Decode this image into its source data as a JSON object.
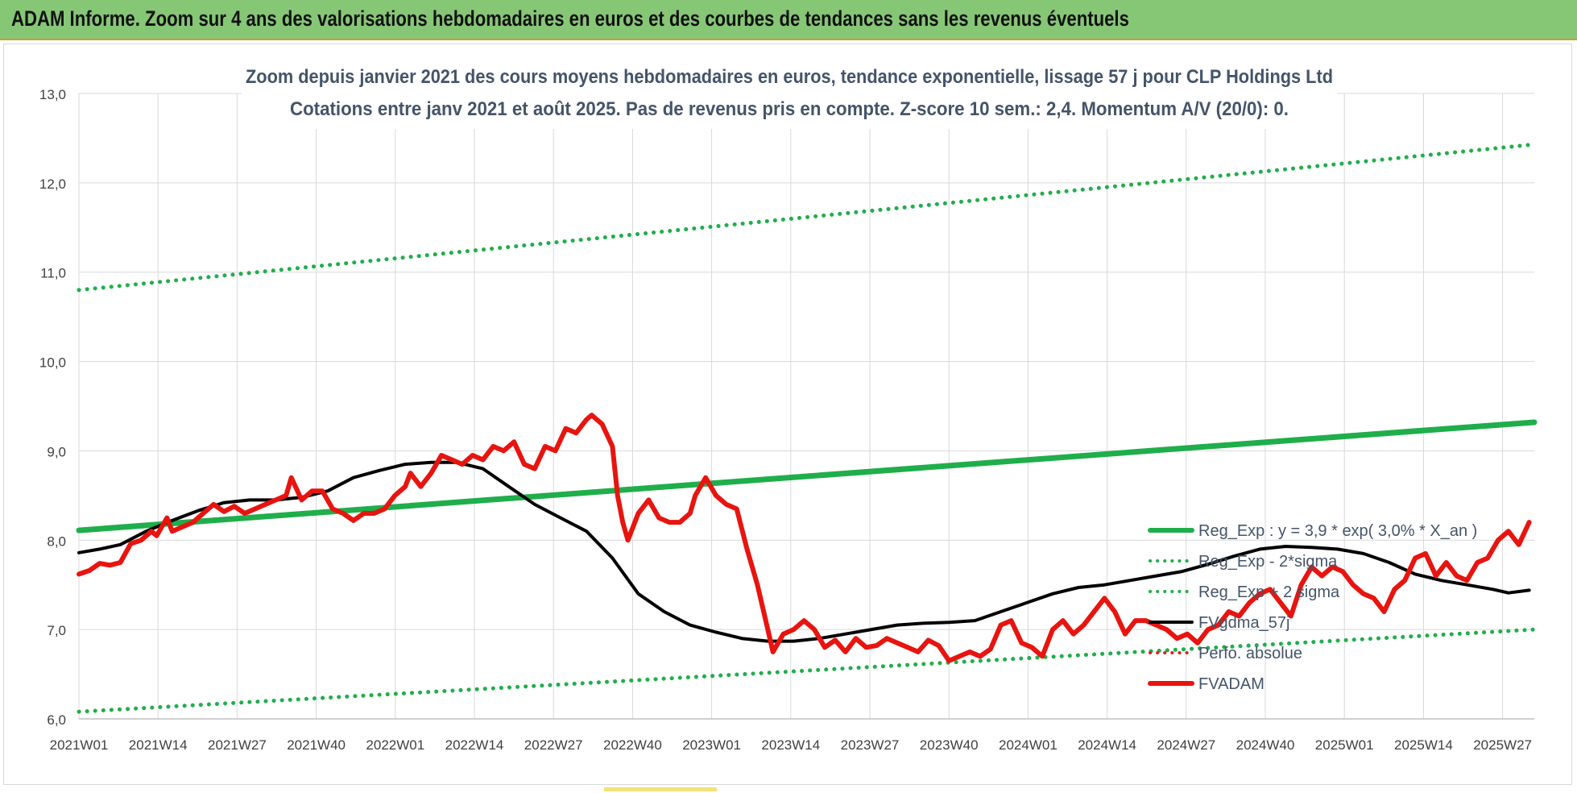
{
  "banner": {
    "title": "ADAM Informe. Zoom sur 4 ans des valorisations hebdomadaires en euros et des courbes de tendances sans les revenus éventuels"
  },
  "chart_data": {
    "type": "line",
    "title_line1": "Zoom depuis janvier 2021 des cours moyens hebdomadaires en euros, tendance exponentielle, lissage 57 j pour CLP Holdings Ltd",
    "title_line2": "Cotations entre janv 2021 et août 2025. Pas de revenus pris en compte. Z-score 10 sem.: 2,4. Momentum A/V (20/0): 0.",
    "ylim": [
      6.0,
      13.0
    ],
    "y_ticks": [
      "6,0",
      "7,0",
      "8,0",
      "9,0",
      "10,0",
      "11,0",
      "12,0",
      "13,0"
    ],
    "x_ticks": [
      "2021W01",
      "2021W14",
      "2021W27",
      "2021W40",
      "2022W01",
      "2022W14",
      "2022W27",
      "2022W40",
      "2023W01",
      "2023W14",
      "2023W27",
      "2023W40",
      "2024W01",
      "2024W14",
      "2024W27",
      "2024W40",
      "2025W01",
      "2025W14",
      "2025W27"
    ],
    "weeks_count": 241,
    "grid": true,
    "legend_position": "right",
    "legend": [
      {
        "name": "Reg_Exp : y = 3,9 * exp( 3,0% *  X_an )",
        "color": "#1fae4b",
        "style": "solid-thick"
      },
      {
        "name": "Reg_Exp - 2*sigma",
        "color": "#1fae4b",
        "style": "dotted"
      },
      {
        "name": "Reg_Exp + 2 sigma",
        "color": "#1fae4b",
        "style": "dotted"
      },
      {
        "name": "FVgdma_57j",
        "color": "#000000",
        "style": "solid"
      },
      {
        "name": "Perfo. absolue",
        "color": "#e02020",
        "style": "dotted"
      },
      {
        "name": "FVADAM",
        "color": "#e8140f",
        "style": "solid-thick"
      }
    ],
    "series": [
      {
        "name": "Reg_Exp : y = 3,9 * exp( 3,0% *  X_an )",
        "start": 8.11,
        "end": 9.32
      },
      {
        "name": "Reg_Exp - 2*sigma",
        "start": 6.08,
        "end": 7.0
      },
      {
        "name": "Reg_Exp + 2 sigma",
        "start": 10.8,
        "end": 12.43
      },
      {
        "name": "FVgdma_57j",
        "points": [
          [
            0,
            7.86
          ],
          [
            4,
            7.9
          ],
          [
            8,
            7.95
          ],
          [
            13,
            8.1
          ],
          [
            18,
            8.22
          ],
          [
            23,
            8.33
          ],
          [
            28,
            8.42
          ],
          [
            33,
            8.45
          ],
          [
            38,
            8.45
          ],
          [
            43,
            8.48
          ],
          [
            48,
            8.55
          ],
          [
            53,
            8.7
          ],
          [
            58,
            8.78
          ],
          [
            63,
            8.85
          ],
          [
            68,
            8.87
          ],
          [
            73,
            8.87
          ],
          [
            78,
            8.8
          ],
          [
            83,
            8.6
          ],
          [
            88,
            8.4
          ],
          [
            93,
            8.25
          ],
          [
            98,
            8.1
          ],
          [
            103,
            7.8
          ],
          [
            108,
            7.4
          ],
          [
            113,
            7.2
          ],
          [
            118,
            7.05
          ],
          [
            123,
            6.97
          ],
          [
            128,
            6.9
          ],
          [
            133,
            6.87
          ],
          [
            138,
            6.87
          ],
          [
            143,
            6.9
          ],
          [
            148,
            6.95
          ],
          [
            153,
            7.0
          ],
          [
            158,
            7.05
          ],
          [
            163,
            7.07
          ],
          [
            168,
            7.08
          ],
          [
            173,
            7.1
          ],
          [
            178,
            7.2
          ],
          [
            183,
            7.3
          ],
          [
            188,
            7.4
          ],
          [
            193,
            7.47
          ],
          [
            198,
            7.5
          ],
          [
            203,
            7.55
          ],
          [
            208,
            7.6
          ],
          [
            213,
            7.65
          ],
          [
            218,
            7.73
          ],
          [
            223,
            7.82
          ],
          [
            228,
            7.9
          ],
          [
            233,
            7.93
          ],
          [
            238,
            7.92
          ],
          [
            243,
            7.9
          ],
          [
            248,
            7.85
          ],
          [
            253,
            7.75
          ],
          [
            258,
            7.62
          ],
          [
            263,
            7.55
          ],
          [
            268,
            7.5
          ],
          [
            273,
            7.45
          ],
          [
            276,
            7.41
          ],
          [
            280,
            7.44
          ]
        ]
      },
      {
        "name": "FVADAM",
        "points": [
          [
            0,
            7.62
          ],
          [
            2,
            7.66
          ],
          [
            4,
            7.74
          ],
          [
            6,
            7.72
          ],
          [
            8,
            7.75
          ],
          [
            10,
            7.96
          ],
          [
            12,
            8.0
          ],
          [
            14,
            8.1
          ],
          [
            15,
            8.05
          ],
          [
            17,
            8.25
          ],
          [
            18,
            8.1
          ],
          [
            20,
            8.15
          ],
          [
            22,
            8.2
          ],
          [
            24,
            8.3
          ],
          [
            26,
            8.4
          ],
          [
            28,
            8.32
          ],
          [
            30,
            8.38
          ],
          [
            32,
            8.3
          ],
          [
            34,
            8.35
          ],
          [
            36,
            8.4
          ],
          [
            38,
            8.45
          ],
          [
            40,
            8.5
          ],
          [
            41,
            8.7
          ],
          [
            43,
            8.45
          ],
          [
            45,
            8.55
          ],
          [
            47,
            8.55
          ],
          [
            49,
            8.35
          ],
          [
            51,
            8.3
          ],
          [
            53,
            8.22
          ],
          [
            55,
            8.3
          ],
          [
            57,
            8.3
          ],
          [
            59,
            8.35
          ],
          [
            61,
            8.5
          ],
          [
            63,
            8.6
          ],
          [
            64,
            8.75
          ],
          [
            66,
            8.6
          ],
          [
            68,
            8.75
          ],
          [
            70,
            8.95
          ],
          [
            72,
            8.9
          ],
          [
            74,
            8.85
          ],
          [
            76,
            8.95
          ],
          [
            78,
            8.9
          ],
          [
            80,
            9.05
          ],
          [
            82,
            9.0
          ],
          [
            84,
            9.1
          ],
          [
            86,
            8.85
          ],
          [
            88,
            8.8
          ],
          [
            90,
            9.05
          ],
          [
            92,
            9.0
          ],
          [
            94,
            9.25
          ],
          [
            96,
            9.2
          ],
          [
            98,
            9.35
          ],
          [
            99,
            9.4
          ],
          [
            101,
            9.3
          ],
          [
            103,
            9.05
          ],
          [
            104,
            8.5
          ],
          [
            105,
            8.2
          ],
          [
            106,
            8.0
          ],
          [
            108,
            8.3
          ],
          [
            110,
            8.45
          ],
          [
            112,
            8.25
          ],
          [
            114,
            8.2
          ],
          [
            116,
            8.2
          ],
          [
            118,
            8.3
          ],
          [
            119,
            8.5
          ],
          [
            121,
            8.7
          ],
          [
            123,
            8.5
          ],
          [
            125,
            8.4
          ],
          [
            127,
            8.35
          ],
          [
            129,
            7.9
          ],
          [
            131,
            7.5
          ],
          [
            133,
            7.0
          ],
          [
            134,
            6.75
          ],
          [
            136,
            6.95
          ],
          [
            138,
            7.0
          ],
          [
            140,
            7.1
          ],
          [
            142,
            7.0
          ],
          [
            144,
            6.8
          ],
          [
            146,
            6.88
          ],
          [
            148,
            6.75
          ],
          [
            150,
            6.9
          ],
          [
            152,
            6.8
          ],
          [
            154,
            6.82
          ],
          [
            156,
            6.9
          ],
          [
            158,
            6.85
          ],
          [
            160,
            6.8
          ],
          [
            162,
            6.75
          ],
          [
            164,
            6.88
          ],
          [
            166,
            6.82
          ],
          [
            168,
            6.65
          ],
          [
            170,
            6.7
          ],
          [
            172,
            6.75
          ],
          [
            174,
            6.7
          ],
          [
            176,
            6.78
          ],
          [
            178,
            7.05
          ],
          [
            180,
            7.1
          ],
          [
            182,
            6.85
          ],
          [
            184,
            6.8
          ],
          [
            186,
            6.7
          ],
          [
            188,
            7.0
          ],
          [
            190,
            7.1
          ],
          [
            192,
            6.95
          ],
          [
            194,
            7.05
          ],
          [
            196,
            7.2
          ],
          [
            198,
            7.35
          ],
          [
            200,
            7.2
          ],
          [
            202,
            6.95
          ],
          [
            204,
            7.1
          ],
          [
            206,
            7.1
          ],
          [
            208,
            7.05
          ],
          [
            210,
            7.0
          ],
          [
            212,
            6.9
          ],
          [
            214,
            6.95
          ],
          [
            216,
            6.85
          ],
          [
            218,
            7.0
          ],
          [
            220,
            7.05
          ],
          [
            222,
            7.2
          ],
          [
            224,
            7.15
          ],
          [
            226,
            7.3
          ],
          [
            228,
            7.4
          ],
          [
            230,
            7.45
          ],
          [
            232,
            7.3
          ],
          [
            234,
            7.15
          ],
          [
            236,
            7.5
          ],
          [
            238,
            7.7
          ],
          [
            240,
            7.6
          ],
          [
            242,
            7.7
          ],
          [
            244,
            7.65
          ],
          [
            246,
            7.5
          ],
          [
            248,
            7.4
          ],
          [
            250,
            7.35
          ],
          [
            252,
            7.2
          ],
          [
            254,
            7.45
          ],
          [
            256,
            7.55
          ],
          [
            258,
            7.8
          ],
          [
            260,
            7.85
          ],
          [
            262,
            7.6
          ],
          [
            264,
            7.75
          ],
          [
            266,
            7.6
          ],
          [
            268,
            7.55
          ],
          [
            270,
            7.75
          ],
          [
            272,
            7.8
          ],
          [
            274,
            8.0
          ],
          [
            276,
            8.1
          ],
          [
            278,
            7.95
          ],
          [
            280,
            8.2
          ]
        ]
      }
    ]
  }
}
